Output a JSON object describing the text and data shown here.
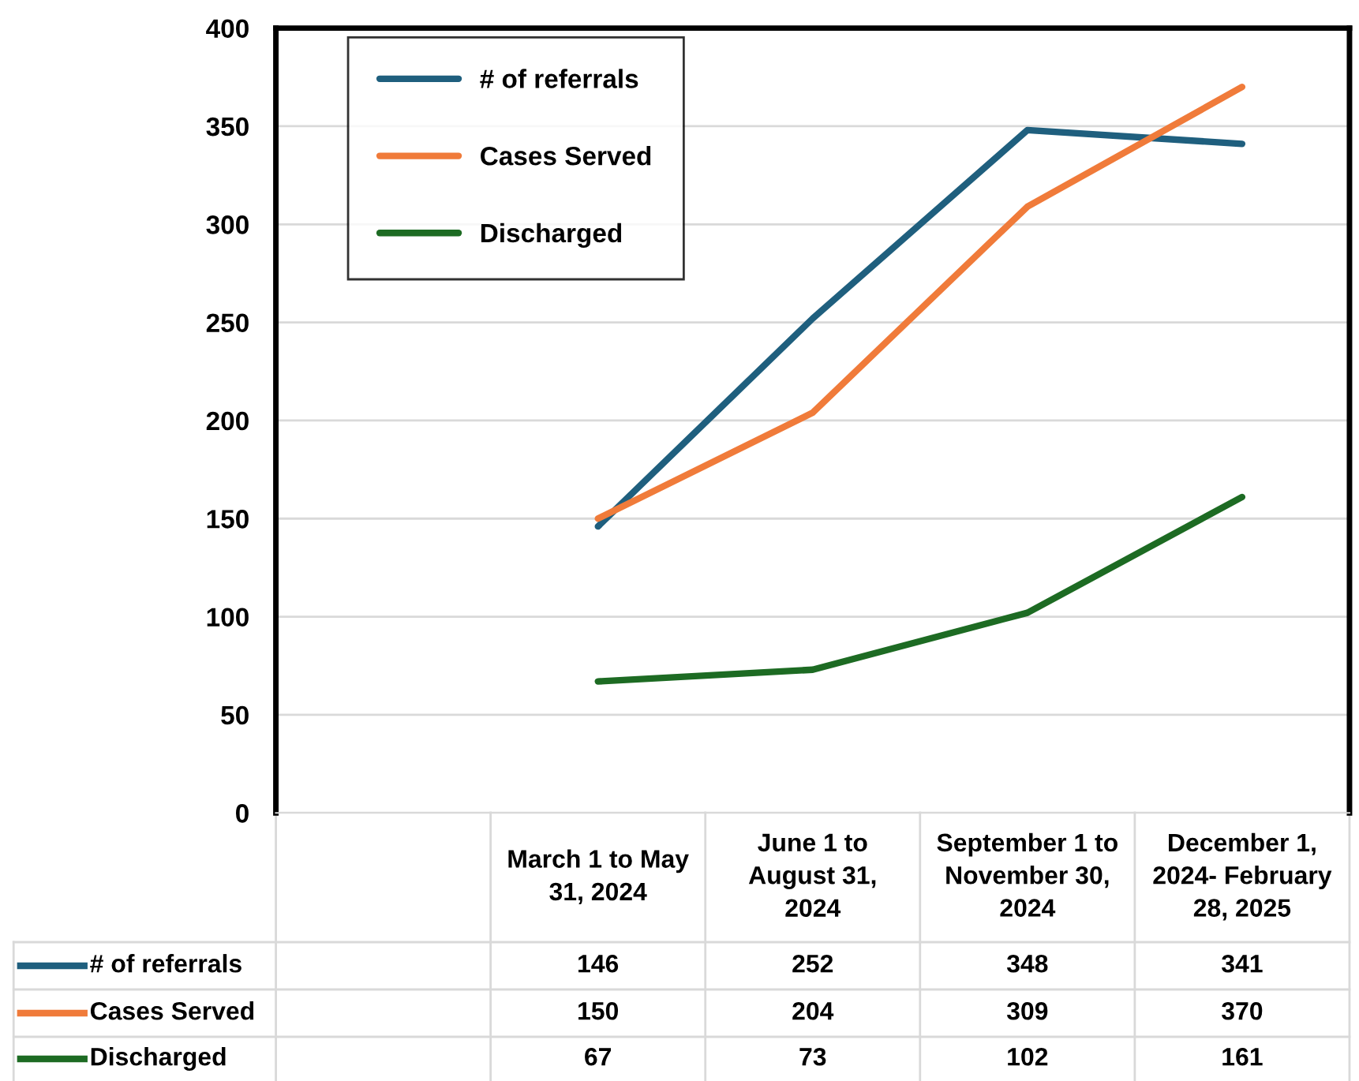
{
  "chart_data": {
    "type": "line",
    "categories": [
      null,
      "March 1 to May\n31, 2024",
      "June 1 to\nAugust 31,\n2024",
      "September 1 to\nNovember 30,\n2024",
      "December 1,\n2024- February\n28, 2025"
    ],
    "series": [
      {
        "name": "# of referrals",
        "color": "#1f5f7e",
        "values": [
          null,
          146,
          252,
          348,
          341
        ]
      },
      {
        "name": "Cases Served",
        "color": "#f07b3a",
        "values": [
          null,
          150,
          204,
          309,
          370
        ]
      },
      {
        "name": "Discharged",
        "color": "#1d6b23",
        "values": [
          null,
          67,
          73,
          102,
          161
        ]
      }
    ],
    "ylim": [
      0,
      400
    ],
    "yticks": [
      0,
      50,
      100,
      150,
      200,
      250,
      300,
      350,
      400
    ],
    "grid": "y",
    "legend": "top left",
    "data_labels": true,
    "marker": "none",
    "line_style": "solid"
  }
}
